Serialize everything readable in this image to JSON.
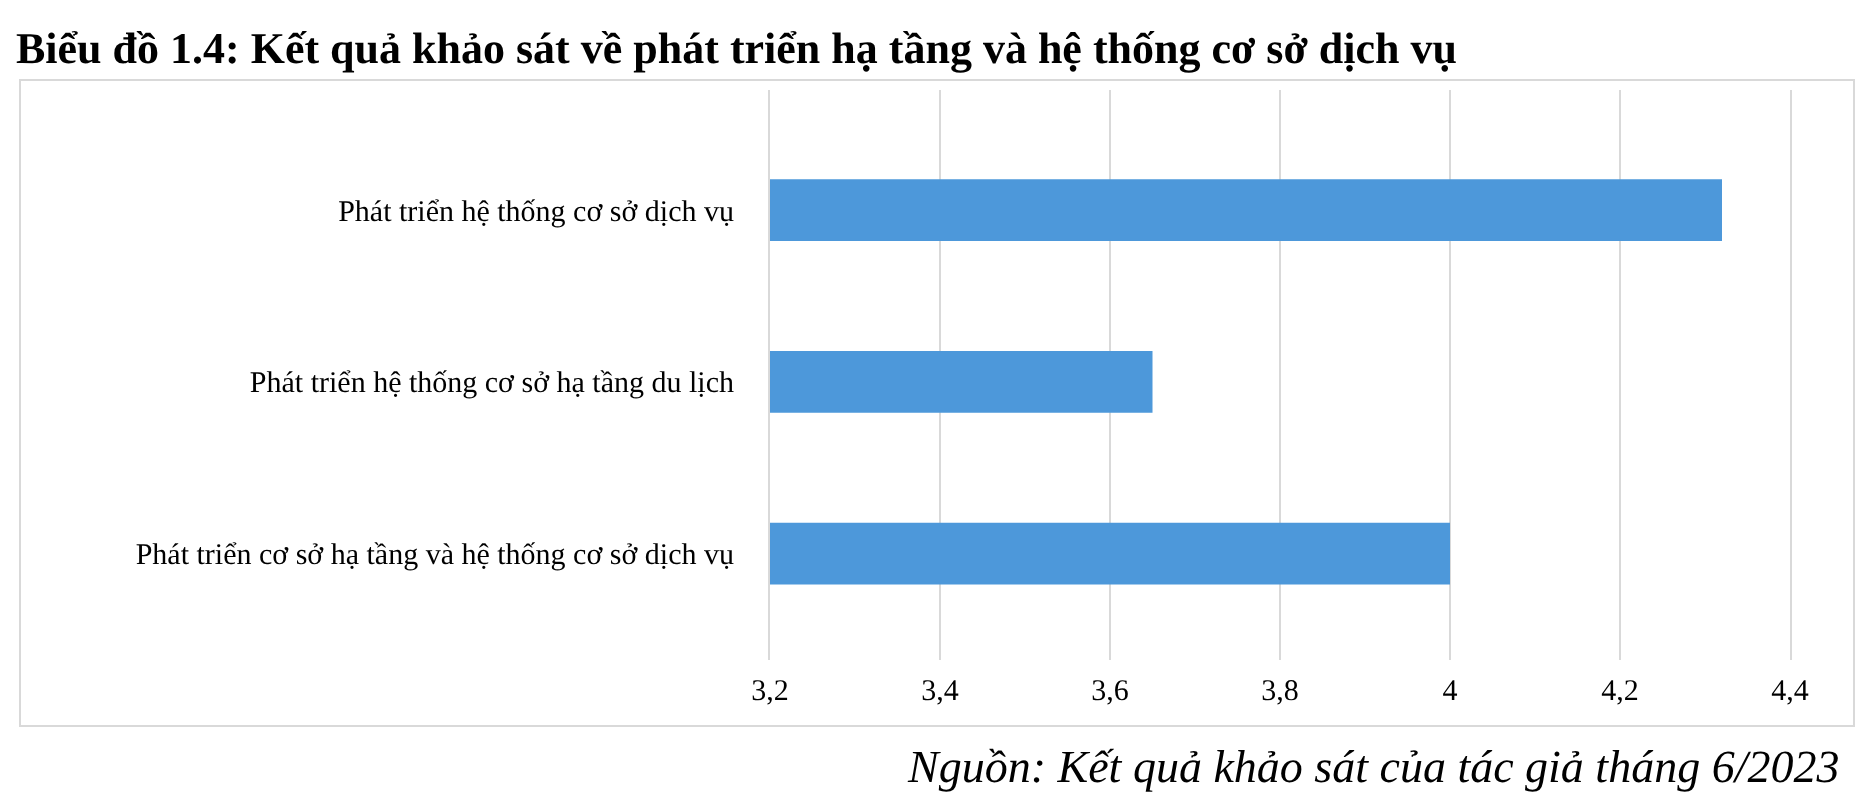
{
  "chart_data": {
    "type": "bar",
    "orientation": "horizontal",
    "title": "Biểu đồ 1.4: Kết quả khảo sát về phát triển hạ tầng và hệ thống cơ sở dịch vụ",
    "categories": [
      "Phát triển hệ thống cơ sở dịch vụ",
      "Phát triển hệ thống cơ sở hạ tầng du lịch",
      "Phát triển cơ sở hạ tầng và hệ thống cơ sở dịch vụ"
    ],
    "values": [
      4.32,
      3.65,
      4.0
    ],
    "color": "#4d98da",
    "xlim": [
      3.2,
      4.4
    ],
    "xticks": [
      {
        "value": 3.2,
        "label": "3,2"
      },
      {
        "value": 3.4,
        "label": "3,4"
      },
      {
        "value": 3.6,
        "label": "3,6"
      },
      {
        "value": 3.8,
        "label": "3,8"
      },
      4,
      {
        "value": 4.2,
        "label": "4,2"
      },
      {
        "value": 4.4,
        "label": "4,4"
      }
    ],
    "grid": "x",
    "annotations": [
      "Nguồn: Kết quả khảo sát của tác giả tháng 6/2023"
    ]
  }
}
